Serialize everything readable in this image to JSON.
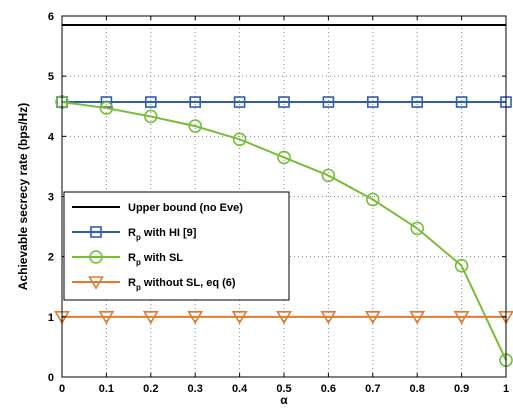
{
  "chart_data": {
    "type": "line",
    "xlabel": "α",
    "ylabel": "Achievable secrecy rate (bps/Hz)",
    "xlim": [
      0,
      1
    ],
    "ylim": [
      0,
      6
    ],
    "x_ticks": [
      "0",
      "0.1",
      "0.2",
      "0.3",
      "0.4",
      "0.5",
      "0.6",
      "0.7",
      "0.8",
      "0.9",
      "1"
    ],
    "y_ticks": [
      "0",
      "1",
      "2",
      "3",
      "4",
      "5",
      "6"
    ],
    "grid": true,
    "legend_position": "lower-left",
    "x": [
      0,
      0.1,
      0.2,
      0.3,
      0.4,
      0.5,
      0.6,
      0.7,
      0.8,
      0.9,
      1
    ],
    "series": [
      {
        "name": "Upper bound (no Eve)",
        "legend": {
          "main": "Upper bound (no Eve)",
          "sub": "",
          "rest": ""
        },
        "color": "#000000",
        "marker": "none",
        "values": [
          5.85,
          5.85,
          5.85,
          5.85,
          5.85,
          5.85,
          5.85,
          5.85,
          5.85,
          5.85,
          5.85
        ]
      },
      {
        "name": "Rp with HI [9]",
        "legend": {
          "main": "R",
          "sub": "p",
          "rest": " with HI [9]"
        },
        "color": "#2f5fa8",
        "marker": "square",
        "values": [
          4.57,
          4.57,
          4.57,
          4.57,
          4.57,
          4.57,
          4.57,
          4.57,
          4.57,
          4.57,
          4.57
        ]
      },
      {
        "name": "Rp with SL",
        "legend": {
          "main": "R",
          "sub": "p",
          "rest": " with SL"
        },
        "color": "#79bd3a",
        "marker": "circle",
        "values": [
          4.57,
          4.47,
          4.33,
          4.17,
          3.95,
          3.65,
          3.35,
          2.95,
          2.47,
          1.85,
          0.28
        ]
      },
      {
        "name": "Rp without SL, eq (6)",
        "legend": {
          "main": "R",
          "sub": "p",
          "rest": " without SL, eq (6)"
        },
        "color": "#e07b2f",
        "marker": "triangle-down",
        "values": [
          1.0,
          1.0,
          1.0,
          1.0,
          1.0,
          1.0,
          1.0,
          1.0,
          1.0,
          1.0,
          1.0
        ]
      }
    ]
  }
}
